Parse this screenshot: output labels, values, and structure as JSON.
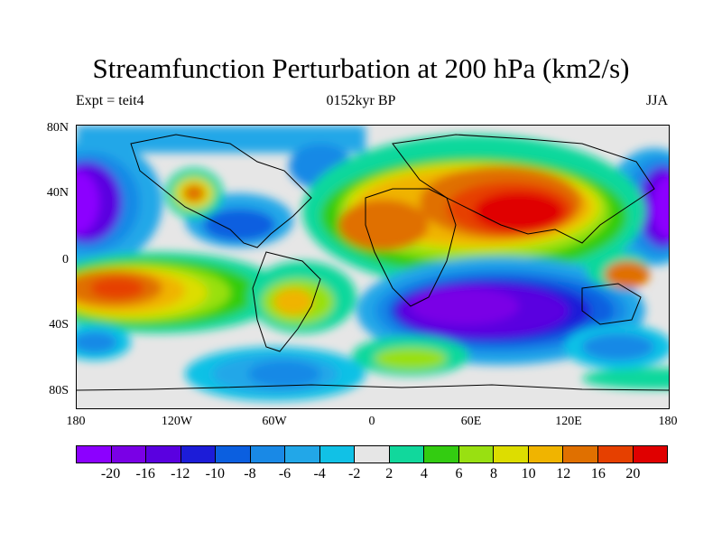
{
  "header": {
    "title": "Streamfunction Perturbation at 200 hPa (km2/s)",
    "left": "Expt = teit4",
    "center": "0152kyr BP",
    "right": "JJA"
  },
  "axes": {
    "lat_labels": [
      "80N",
      "40N",
      "0",
      "40S",
      "80S"
    ],
    "lon_labels": [
      "180",
      "120W",
      "60W",
      "0",
      "60E",
      "120E",
      "180"
    ]
  },
  "colorbar": {
    "colors": [
      "#8c00ff",
      "#7a00e6",
      "#5a00e0",
      "#1c1cd8",
      "#0b5fe0",
      "#1989e6",
      "#22a7e8",
      "#11c1e6",
      "#e6e6e6",
      "#11d89c",
      "#33cc11",
      "#99e011",
      "#dddd00",
      "#f0b400",
      "#e07000",
      "#e64000",
      "#e00000"
    ],
    "labels": [
      "-20",
      "-16",
      "-12",
      "-10",
      "-8",
      "-6",
      "-4",
      "-2",
      "2",
      "4",
      "6",
      "8",
      "10",
      "12",
      "16",
      "20"
    ]
  }
}
